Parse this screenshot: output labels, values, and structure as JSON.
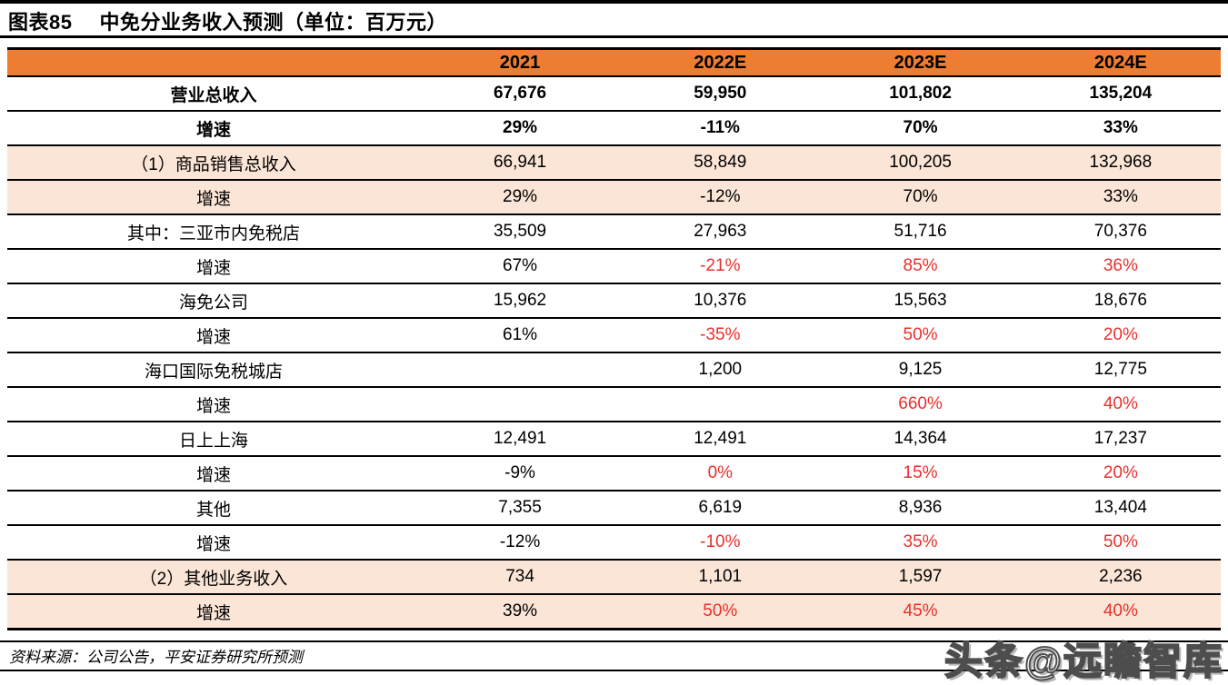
{
  "title": {
    "figure_label": "图表85",
    "figure_title": "中免分业务收入预测（单位：百万元）"
  },
  "table": {
    "columns": [
      "",
      "2021",
      "2022E",
      "2023E",
      "2024E"
    ],
    "rows": [
      {
        "label": "营业总收入",
        "values": [
          "67,676",
          "59,950",
          "101,802",
          "135,204"
        ],
        "bold": true,
        "highlight": false,
        "red": [
          false,
          false,
          false,
          false
        ]
      },
      {
        "label": "增速",
        "values": [
          "29%",
          "-11%",
          "70%",
          "33%"
        ],
        "bold": true,
        "highlight": false,
        "red": [
          false,
          false,
          false,
          false
        ]
      },
      {
        "label": "（1）商品销售总收入",
        "values": [
          "66,941",
          "58,849",
          "100,205",
          "132,968"
        ],
        "bold": false,
        "highlight": true,
        "red": [
          false,
          false,
          false,
          false
        ]
      },
      {
        "label": "增速",
        "values": [
          "29%",
          "-12%",
          "70%",
          "33%"
        ],
        "bold": false,
        "highlight": true,
        "red": [
          false,
          false,
          false,
          false
        ]
      },
      {
        "label": "其中：三亚市内免税店",
        "values": [
          "35,509",
          "27,963",
          "51,716",
          "70,376"
        ],
        "bold": false,
        "highlight": false,
        "red": [
          false,
          false,
          false,
          false
        ]
      },
      {
        "label": "增速",
        "values": [
          "67%",
          "-21%",
          "85%",
          "36%"
        ],
        "bold": false,
        "highlight": false,
        "red": [
          false,
          true,
          true,
          true
        ]
      },
      {
        "label": "海免公司",
        "values": [
          "15,962",
          "10,376",
          "15,563",
          "18,676"
        ],
        "bold": false,
        "highlight": false,
        "red": [
          false,
          false,
          false,
          false
        ]
      },
      {
        "label": "增速",
        "values": [
          "61%",
          "-35%",
          "50%",
          "20%"
        ],
        "bold": false,
        "highlight": false,
        "red": [
          false,
          true,
          true,
          true
        ]
      },
      {
        "label": "海口国际免税城店",
        "values": [
          "",
          "1,200",
          "9,125",
          "12,775"
        ],
        "bold": false,
        "highlight": false,
        "red": [
          false,
          false,
          false,
          false
        ]
      },
      {
        "label": "增速",
        "values": [
          "",
          "",
          "660%",
          "40%"
        ],
        "bold": false,
        "highlight": false,
        "red": [
          false,
          false,
          true,
          true
        ]
      },
      {
        "label": "日上上海",
        "values": [
          "12,491",
          "12,491",
          "14,364",
          "17,237"
        ],
        "bold": false,
        "highlight": false,
        "red": [
          false,
          false,
          false,
          false
        ]
      },
      {
        "label": "增速",
        "values": [
          "-9%",
          "0%",
          "15%",
          "20%"
        ],
        "bold": false,
        "highlight": false,
        "red": [
          false,
          true,
          true,
          true
        ]
      },
      {
        "label": "其他",
        "values": [
          "7,355",
          "6,619",
          "8,936",
          "13,404"
        ],
        "bold": false,
        "highlight": false,
        "red": [
          false,
          false,
          false,
          false
        ]
      },
      {
        "label": "增速",
        "values": [
          "-12%",
          "-10%",
          "35%",
          "50%"
        ],
        "bold": false,
        "highlight": false,
        "red": [
          false,
          true,
          true,
          true
        ]
      },
      {
        "label": "（2）其他业务收入",
        "values": [
          "734",
          "1,101",
          "1,597",
          "2,236"
        ],
        "bold": false,
        "highlight": true,
        "red": [
          false,
          false,
          false,
          false
        ]
      },
      {
        "label": "增速",
        "values": [
          "39%",
          "50%",
          "45%",
          "40%"
        ],
        "bold": false,
        "highlight": true,
        "red": [
          false,
          true,
          true,
          true
        ]
      }
    ]
  },
  "footer": {
    "source": "资料来源：公司公告，平安证券研究所预测"
  },
  "watermark": "头条@远瞻智库",
  "colors": {
    "header_bg": "#ED7D31",
    "highlight_bg": "#FBE5D6",
    "red_text": "#E8302D",
    "rule": "#000000"
  }
}
